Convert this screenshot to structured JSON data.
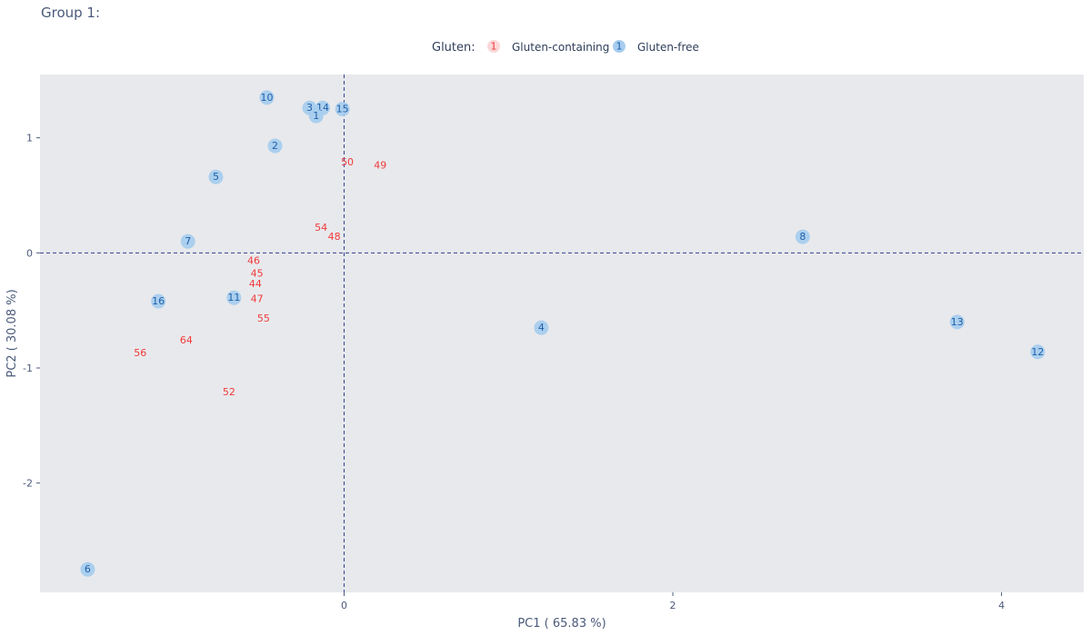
{
  "title": "Group 1:",
  "chart_data": {
    "type": "scatter",
    "xlabel": "PC1 ( 65.83 %)",
    "ylabel": "PC2 ( 30.08 %)",
    "xlim": [
      -1.85,
      4.5
    ],
    "ylim": [
      -2.95,
      1.55
    ],
    "xticks": [
      0,
      2,
      4
    ],
    "yticks": [
      -2,
      -1,
      0,
      1
    ],
    "reference_lines": {
      "x": 0,
      "y": 0,
      "style": "dashed"
    },
    "grid": false,
    "legend": {
      "title": "Gluten:",
      "position": "top-center",
      "entries": [
        {
          "label": "Gluten-containing",
          "marker_text": "1"
        },
        {
          "label": "Gluten-free",
          "marker_text": "1"
        }
      ]
    },
    "series": [
      {
        "name": "Gluten-containing",
        "color": "#f03a3a",
        "marker": "text",
        "points": [
          {
            "label": "50",
            "x": 0.02,
            "y": 0.79
          },
          {
            "label": "49",
            "x": 0.22,
            "y": 0.76
          },
          {
            "label": "54",
            "x": -0.14,
            "y": 0.22
          },
          {
            "label": "48",
            "x": -0.06,
            "y": 0.14
          },
          {
            "label": "46",
            "x": -0.55,
            "y": -0.07
          },
          {
            "label": "45",
            "x": -0.53,
            "y": -0.18
          },
          {
            "label": "44",
            "x": -0.54,
            "y": -0.27
          },
          {
            "label": "47",
            "x": -0.53,
            "y": -0.4
          },
          {
            "label": "55",
            "x": -0.49,
            "y": -0.57
          },
          {
            "label": "64",
            "x": -0.96,
            "y": -0.76
          },
          {
            "label": "56",
            "x": -1.24,
            "y": -0.87
          },
          {
            "label": "52",
            "x": -0.7,
            "y": -1.21
          }
        ]
      },
      {
        "name": "Gluten-free",
        "color": "#a8cdee",
        "text_color": "#1f5fa8",
        "marker": "circle",
        "points": [
          {
            "label": "10",
            "x": -0.47,
            "y": 1.35
          },
          {
            "label": "3",
            "x": -0.21,
            "y": 1.26
          },
          {
            "label": "14",
            "x": -0.13,
            "y": 1.26
          },
          {
            "label": "15",
            "x": -0.01,
            "y": 1.25
          },
          {
            "label": "1",
            "x": -0.17,
            "y": 1.19
          },
          {
            "label": "2",
            "x": -0.42,
            "y": 0.93
          },
          {
            "label": "5",
            "x": -0.78,
            "y": 0.66
          },
          {
            "label": "7",
            "x": -0.95,
            "y": 0.1
          },
          {
            "label": "16",
            "x": -1.13,
            "y": -0.42
          },
          {
            "label": "11",
            "x": -0.67,
            "y": -0.39
          },
          {
            "label": "4",
            "x": 1.2,
            "y": -0.65
          },
          {
            "label": "8",
            "x": 2.79,
            "y": 0.14
          },
          {
            "label": "13",
            "x": 3.73,
            "y": -0.6
          },
          {
            "label": "12",
            "x": 4.22,
            "y": -0.86
          },
          {
            "label": "6",
            "x": -1.56,
            "y": -2.75
          }
        ]
      }
    ]
  }
}
